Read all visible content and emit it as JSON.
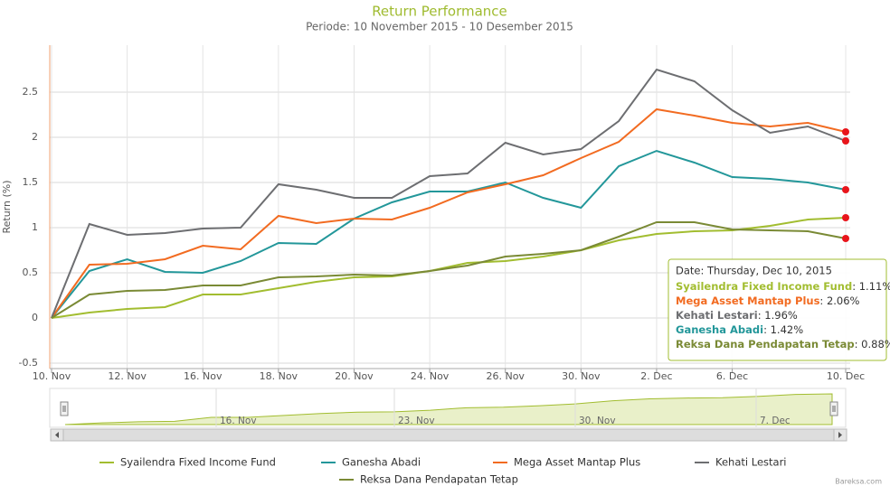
{
  "chart_data": {
    "type": "line",
    "title": "Return Performance",
    "subtitle": "Periode: 10 November 2015 - 10 Desember 2015",
    "y_label": "Return (%)",
    "credit": "Bareksa.com",
    "categories": [
      "10. Nov",
      null,
      "12. Nov",
      null,
      "16. Nov",
      null,
      "18. Nov",
      null,
      "20. Nov",
      null,
      "24. Nov",
      null,
      "26. Nov",
      null,
      "30. Nov",
      null,
      "2. Dec",
      null,
      "6. Dec",
      null,
      null,
      "10. Dec"
    ],
    "series": [
      {
        "name": "Syailendra Fixed Income Fund",
        "color": "#a2bd30",
        "values": [
          0,
          0.06,
          0.1,
          0.12,
          0.26,
          0.26,
          0.33,
          0.4,
          0.45,
          0.46,
          0.52,
          0.61,
          0.63,
          0.68,
          0.75,
          0.86,
          0.93,
          0.96,
          0.97,
          1.02,
          1.09,
          1.11
        ]
      },
      {
        "name": "Ganesha Abadi",
        "color": "#23979a",
        "values": [
          0,
          0.52,
          0.65,
          0.51,
          0.5,
          0.63,
          0.83,
          0.82,
          1.1,
          1.28,
          1.4,
          1.4,
          1.5,
          1.33,
          1.22,
          1.68,
          1.85,
          1.72,
          1.56,
          1.54,
          1.5,
          1.42
        ]
      },
      {
        "name": "Mega Asset Mantap Plus",
        "color": "#f26b21",
        "values": [
          0,
          0.59,
          0.6,
          0.65,
          0.8,
          0.76,
          1.13,
          1.05,
          1.1,
          1.09,
          1.22,
          1.39,
          1.48,
          1.58,
          1.77,
          1.95,
          2.31,
          2.24,
          2.16,
          2.12,
          2.16,
          2.06
        ]
      },
      {
        "name": "Kehati Lestari",
        "color": "#6d6e71",
        "values": [
          0,
          1.04,
          0.92,
          0.94,
          0.99,
          1.0,
          1.48,
          1.42,
          1.33,
          1.33,
          1.57,
          1.6,
          1.94,
          1.81,
          1.87,
          2.18,
          2.75,
          2.62,
          2.3,
          2.05,
          2.12,
          1.96
        ]
      },
      {
        "name": "Reksa Dana Pendapatan Tetap",
        "color": "#7a8a35",
        "values": [
          0,
          0.26,
          0.3,
          0.31,
          0.36,
          0.36,
          0.45,
          0.46,
          0.48,
          0.47,
          0.52,
          0.58,
          0.68,
          0.71,
          0.75,
          0.9,
          1.06,
          1.06,
          0.98,
          0.97,
          0.96,
          0.88
        ]
      }
    ],
    "ylim": [
      -0.56,
      3.02
    ],
    "yticks": [
      -0.5,
      0,
      0.5,
      1,
      1.5,
      2,
      2.5
    ],
    "grid": true,
    "marker_color": "#e8151b",
    "tooltip": {
      "header": "Date: Thursday, Dec 10, 2015",
      "value_labels": [
        "1.11%",
        "2.06%",
        "1.96%",
        "1.42%",
        "0.88%"
      ]
    },
    "navigator": {
      "labels": [
        "16. Nov",
        "23. Nov",
        "30. Nov",
        "7. Dec"
      ]
    }
  }
}
